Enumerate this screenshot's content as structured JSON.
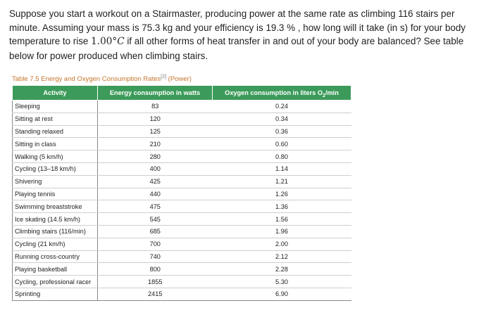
{
  "question": {
    "part1": "Suppose you start a workout on a Stairmaster, producing power at the same rate as climbing 116 stairs per minute. Assuming your mass is 75.3 kg and your efficiency is 19.3 % , how long will it take (in s) for your body temperature to rise ",
    "math_value": "1.00°",
    "math_unit": "C",
    "part2": " if all other forms of heat transfer in and out of your body are balanced? See table below for power produced when climbing stairs."
  },
  "table": {
    "caption": "Table 7.5 Energy and Oxygen Consumption Rates",
    "caption_ref": "[2]",
    "caption_suffix": " (Power)",
    "headers": {
      "activity": "Activity",
      "energy": "Energy consumption in watts",
      "oxygen_prefix": "Oxygen consumption in liters O",
      "oxygen_sub": "2",
      "oxygen_suffix": "/min"
    },
    "rows": [
      {
        "activity": "Sleeping",
        "energy": "83",
        "oxygen": "0.24"
      },
      {
        "activity": "Sitting at rest",
        "energy": "120",
        "oxygen": "0.34"
      },
      {
        "activity": "Standing relaxed",
        "energy": "125",
        "oxygen": "0.36"
      },
      {
        "activity": "Sitting in class",
        "energy": "210",
        "oxygen": "0.60"
      },
      {
        "activity": "Walking (5 km/h)",
        "energy": "280",
        "oxygen": "0.80"
      },
      {
        "activity": "Cycling (13–18 km/h)",
        "energy": "400",
        "oxygen": "1.14"
      },
      {
        "activity": "Shivering",
        "energy": "425",
        "oxygen": "1.21"
      },
      {
        "activity": "Playing tennis",
        "energy": "440",
        "oxygen": "1.26"
      },
      {
        "activity": "Swimming breaststroke",
        "energy": "475",
        "oxygen": "1.36"
      },
      {
        "activity": "Ice skating (14.5 km/h)",
        "energy": "545",
        "oxygen": "1.56"
      },
      {
        "activity": "Climbing stairs (116/min)",
        "energy": "685",
        "oxygen": "1.96"
      },
      {
        "activity": "Cycling (21 km/h)",
        "energy": "700",
        "oxygen": "2.00"
      },
      {
        "activity": "Running cross-country",
        "energy": "740",
        "oxygen": "2.12"
      },
      {
        "activity": "Playing basketball",
        "energy": "800",
        "oxygen": "2.28"
      },
      {
        "activity": "Cycling, professional racer",
        "energy": "1855",
        "oxygen": "5.30"
      },
      {
        "activity": "Sprinting",
        "energy": "2415",
        "oxygen": "6.90"
      }
    ]
  },
  "colors": {
    "header_bg": "#3c9a5a",
    "caption": "#c3752a"
  }
}
